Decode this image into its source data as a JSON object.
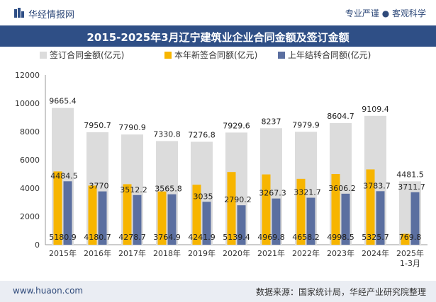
{
  "header": {
    "logo_text": "华经情报网",
    "tagline": "专业严谨 ● 客观科学"
  },
  "title": "2015-2025年3月辽宁建筑业企业合同金额及签订金额",
  "footer": {
    "website": "www.huaon.com",
    "source": "数据来源：国家统计局，华经产业研究院整理"
  },
  "colors": {
    "total": "#dcdcdc",
    "new": "#f7b500",
    "carry": "#5b6fa0",
    "title_bg": "#2f4f86"
  },
  "chart_data": {
    "type": "bar",
    "categories": [
      "2015年",
      "2016年",
      "2017年",
      "2018年",
      "2019年",
      "2020年",
      "2021年",
      "2022年",
      "2023年",
      "2024年",
      "2025年\n1-3月"
    ],
    "series": [
      {
        "name": "签订合同金额(亿元)",
        "values": [
          9665.4,
          7950.7,
          7790.9,
          7330.8,
          7276.8,
          7929.6,
          8237,
          7979.9,
          8604.7,
          9109.4,
          4481.5
        ]
      },
      {
        "name": "本年新签合同额(亿元)",
        "values": [
          5180.9,
          4180.7,
          4278.7,
          3764.9,
          4241.9,
          5139.4,
          4969.8,
          4658.2,
          4998.5,
          5325.7,
          769.8
        ]
      },
      {
        "name": "上年结转合同额(亿元)",
        "values": [
          4484.5,
          3770,
          3512.2,
          3565.8,
          3035,
          2790.2,
          3267.3,
          3321.7,
          3606.2,
          3783.7,
          3711.7
        ]
      }
    ],
    "ylim": [
      0,
      12000
    ],
    "yticks": [
      0,
      2000,
      4000,
      6000,
      8000,
      10000,
      12000
    ],
    "legend": "top"
  }
}
